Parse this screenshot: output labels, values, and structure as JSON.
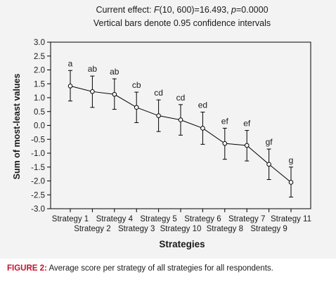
{
  "caption": {
    "label": "FIGURE 2:",
    "text": "Average score per strategy of all strategies for all respondents."
  },
  "chart_data": {
    "type": "line",
    "title": "Current effect: F(10, 600)=16.493, p=0.0000",
    "title_parts": {
      "pre": "Current effect: ",
      "F": "F",
      "mid": "(10, 600)=16.493, ",
      "p": "p",
      "post": "=0.0000"
    },
    "subtitle": "Vertical bars denote 0.95 confidence intervals",
    "xlabel": "Strategies",
    "ylabel": "Sum of most-least values",
    "ylim": [
      -3.0,
      3.0
    ],
    "yticks": [
      "3.0",
      "2.5",
      "2.0",
      "1.5",
      "1.0",
      "0.5",
      "0.0",
      "-0.5",
      "-1.0",
      "-1.5",
      "-2.0",
      "-2.5",
      "-3.0"
    ],
    "grid": false,
    "categories": [
      "Strategy 1",
      "Strategy 2",
      "Strategy 4",
      "Strategy 3",
      "Strategy 5",
      "Strategy 10",
      "Strategy 6",
      "Strategy 8",
      "Strategy 7",
      "Strategy 9",
      "Strategy 11"
    ],
    "values": [
      1.42,
      1.22,
      1.12,
      0.65,
      0.35,
      0.2,
      -0.1,
      -0.65,
      -0.72,
      -1.4,
      -2.05
    ],
    "ci_lower": [
      0.88,
      0.65,
      0.58,
      0.1,
      -0.22,
      -0.35,
      -0.68,
      -1.22,
      -1.28,
      -1.95,
      -2.58
    ],
    "ci_upper": [
      1.98,
      1.78,
      1.68,
      1.2,
      0.92,
      0.75,
      0.48,
      -0.1,
      -0.18,
      -0.85,
      -1.5
    ],
    "group_labels": [
      "a",
      "ab",
      "ab",
      "cb",
      "cd",
      "cd",
      "ed",
      "ef",
      "ef",
      "gf",
      "g"
    ],
    "colors": {
      "line": "#000000",
      "panel": "#f3f3f3",
      "caption_label": "#c8102e"
    }
  }
}
